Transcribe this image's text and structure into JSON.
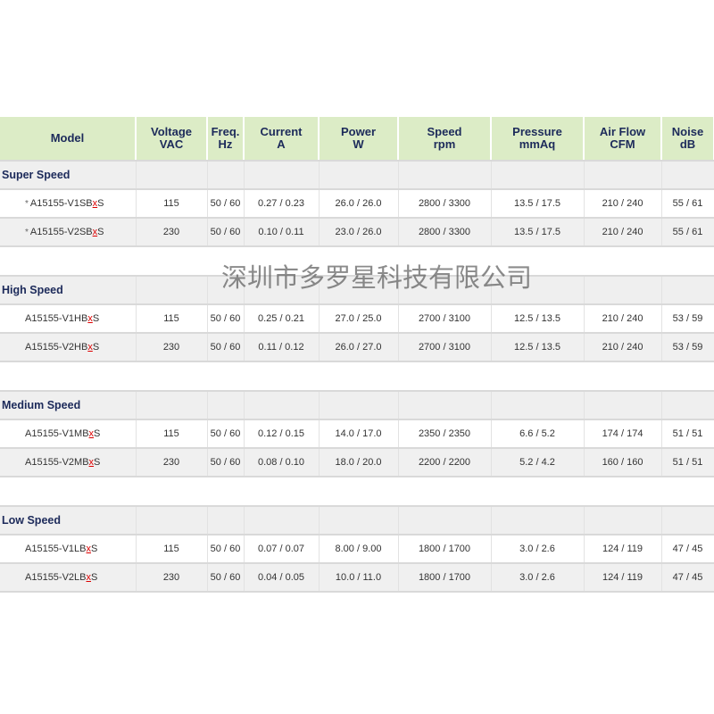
{
  "headers": [
    [
      "Model",
      ""
    ],
    [
      "Voltage",
      "VAC"
    ],
    [
      "Freq.",
      "Hz"
    ],
    [
      "Current",
      "A"
    ],
    [
      "Power",
      "W"
    ],
    [
      "Speed",
      "rpm"
    ],
    [
      "Pressure",
      "mmAq"
    ],
    [
      "Air Flow",
      "CFM"
    ],
    [
      "Noise",
      "dB"
    ]
  ],
  "groups": [
    {
      "name": "Super Speed",
      "rows": [
        {
          "star": "*",
          "pre": "A15155-V1SB",
          "x": "x",
          "post": "S",
          "vals": [
            "115",
            "50 / 60",
            "0.27 / 0.23",
            "26.0 / 26.0",
            "2800 / 3300",
            "13.5 / 17.5",
            "210 / 240",
            "55 / 61"
          ]
        },
        {
          "star": "*",
          "pre": "A15155-V2SB",
          "x": "x",
          "post": "S",
          "vals": [
            "230",
            "50 / 60",
            "0.10 / 0.11",
            "23.0 / 26.0",
            "2800 / 3300",
            "13.5 / 17.5",
            "210 / 240",
            "55 / 61"
          ]
        }
      ]
    },
    {
      "name": "High Speed",
      "rows": [
        {
          "star": "",
          "pre": "A15155-V1HB",
          "x": "x",
          "post": "S",
          "vals": [
            "115",
            "50 / 60",
            "0.25 / 0.21",
            "27.0 / 25.0",
            "2700 / 3100",
            "12.5 / 13.5",
            "210 / 240",
            "53 / 59"
          ]
        },
        {
          "star": "",
          "pre": "A15155-V2HB",
          "x": "x",
          "post": "S",
          "vals": [
            "230",
            "50 / 60",
            "0.11 / 0.12",
            "26.0 / 27.0",
            "2700 / 3100",
            "12.5 / 13.5",
            "210 / 240",
            "53 / 59"
          ]
        }
      ]
    },
    {
      "name": "Medium Speed",
      "rows": [
        {
          "star": "",
          "pre": "A15155-V1MB",
          "x": "x",
          "post": "S",
          "vals": [
            "115",
            "50 / 60",
            "0.12 / 0.15",
            "14.0 / 17.0",
            "2350 / 2350",
            "6.6 / 5.2",
            "174 / 174",
            "51 / 51"
          ]
        },
        {
          "star": "",
          "pre": "A15155-V2MB",
          "x": "x",
          "post": "S",
          "vals": [
            "230",
            "50 / 60",
            "0.08 / 0.10",
            "18.0 / 20.0",
            "2200 / 2200",
            "5.2 / 4.2",
            "160 / 160",
            "51 / 51"
          ]
        }
      ]
    },
    {
      "name": "Low Speed",
      "rows": [
        {
          "star": "",
          "pre": "A15155-V1LB",
          "x": "x",
          "post": "S",
          "vals": [
            "115",
            "50 / 60",
            "0.07 / 0.07",
            "8.00 / 9.00",
            "1800 / 1700",
            "3.0 / 2.6",
            "124 / 119",
            "47 / 45"
          ]
        },
        {
          "star": "",
          "pre": "A15155-V2LB",
          "x": "x",
          "post": "S",
          "vals": [
            "230",
            "50 / 60",
            "0.04 / 0.05",
            "10.0 / 11.0",
            "1800 / 1700",
            "3.0 / 2.6",
            "124 / 119",
            "47 / 45"
          ]
        }
      ]
    }
  ],
  "watermark": "深圳市多罗星科技有限公司"
}
